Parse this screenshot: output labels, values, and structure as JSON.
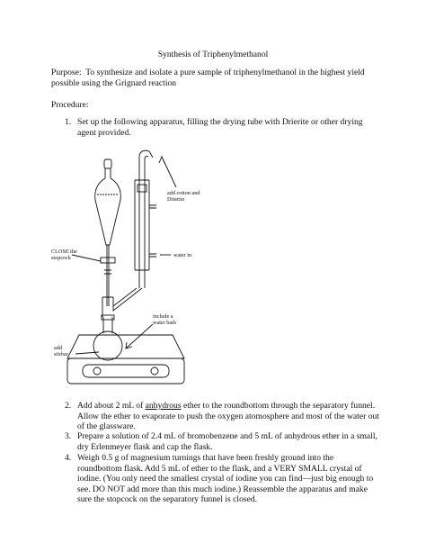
{
  "header": {
    "title": "Synthesis of Triphenylmethanol"
  },
  "purpose": {
    "label": "Purpose:",
    "text": "To synthesize and isolate a pure sample of triphenylmethanol in the highest yield possible using the Grignard reaction"
  },
  "procedure": {
    "label": "Procedure:"
  },
  "steps": [
    {
      "number": "1.",
      "text": "Set up the following apparatus, filling the drying tube with Drierite or other drying agent provided."
    },
    {
      "number": "2.",
      "before": "Add about 2 mL of",
      "underlined": "anhydrous",
      "after": "ether to the roundbottom through the separatory funnel. Allow the ether to evaporate to push the oxygen atomosphere and most of the water out of the glassware."
    },
    {
      "number": "3.",
      "text": "Prepare a solution of 2.4 mL of bromobenzene and 5 mL of anhydrous ether in a small, dry Erlenmeyer flask and cap the flask."
    },
    {
      "number": "4.",
      "text": "Weigh 0.5 g of magnesium turnings that have been freshly ground into the roundbottom flask.  Add 5 mL of ether to the flask, and a VERY SMALL crystal of iodine.  (You only need the smallest crystal of iodine you can find—just big enough to see.  DO NOT add more than this much iodine.) Reassemble the apparatus and make sure the stopcock on the separatory funnel is closed."
    }
  ],
  "diagram": {
    "labels": {
      "cotton": [
        "add cotton and",
        "Drierite"
      ],
      "stopcock": [
        "CLOSE the",
        "stopcock"
      ],
      "water_in": [
        "water in"
      ],
      "water_bath": [
        "include a",
        "water bath"
      ],
      "stirbar": [
        "add",
        "stirbar"
      ]
    }
  }
}
